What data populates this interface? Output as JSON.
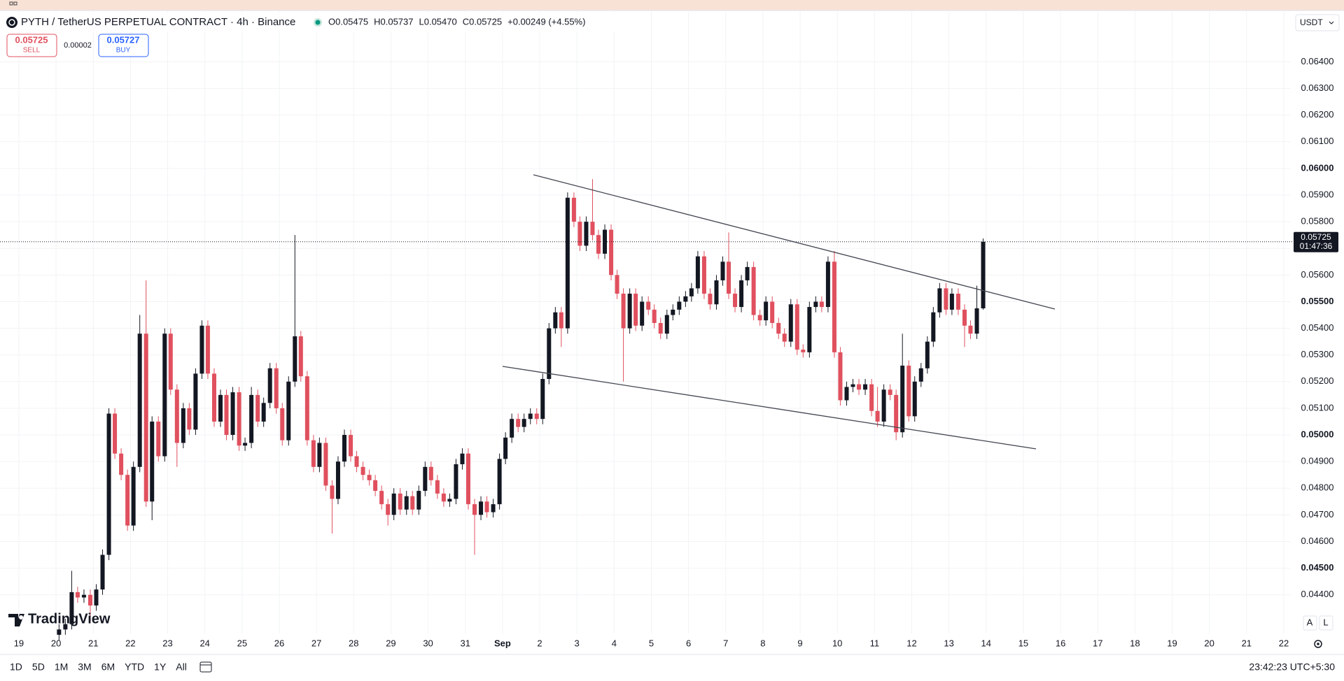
{
  "header": {
    "title": "PYTH / TetherUS PERPETUAL CONTRACT · 4h · Binance",
    "ohlc_legend": [
      "O0.05475",
      "H0.05737",
      "L0.05470",
      "C0.05725",
      "+0.00249 (+4.55%)"
    ],
    "sell_price": "0.05725",
    "sell_label": "SELL",
    "spread": "0.00002",
    "buy_price": "0.05727",
    "buy_label": "BUY",
    "currency": "USDT"
  },
  "chart_data": {
    "type": "candlestick",
    "up_color": "#131722",
    "down_color": "#e0505e",
    "grid": true,
    "xlim": [
      -0.507,
      34.17
    ],
    "ylim": [
      0.04255,
      0.0659
    ],
    "xticks": [
      {
        "value": 0,
        "label": "19"
      },
      {
        "value": 1,
        "label": "20"
      },
      {
        "value": 2,
        "label": "21"
      },
      {
        "value": 3,
        "label": "22"
      },
      {
        "value": 4,
        "label": "23"
      },
      {
        "value": 5,
        "label": "24"
      },
      {
        "value": 6,
        "label": "25"
      },
      {
        "value": 7,
        "label": "26"
      },
      {
        "value": 8,
        "label": "27"
      },
      {
        "value": 9,
        "label": "28"
      },
      {
        "value": 10,
        "label": "29"
      },
      {
        "value": 11,
        "label": "30"
      },
      {
        "value": 12,
        "label": "31"
      },
      {
        "value": 13,
        "label": "Sep"
      },
      {
        "value": 14,
        "label": "2"
      },
      {
        "value": 15,
        "label": "3"
      },
      {
        "value": 16,
        "label": "4"
      },
      {
        "value": 17,
        "label": "5"
      },
      {
        "value": 18,
        "label": "6"
      },
      {
        "value": 19,
        "label": "7"
      },
      {
        "value": 20,
        "label": "8"
      },
      {
        "value": 21,
        "label": "9"
      },
      {
        "value": 22,
        "label": "10"
      },
      {
        "value": 23,
        "label": "11"
      },
      {
        "value": 24,
        "label": "12"
      },
      {
        "value": 25,
        "label": "13"
      },
      {
        "value": 26,
        "label": "14"
      },
      {
        "value": 27,
        "label": "15"
      },
      {
        "value": 28,
        "label": "16"
      },
      {
        "value": 29,
        "label": "17"
      },
      {
        "value": 30,
        "label": "18"
      },
      {
        "value": 31,
        "label": "19"
      },
      {
        "value": 32,
        "label": "20"
      },
      {
        "value": 33,
        "label": "21"
      },
      {
        "value": 34,
        "label": "22"
      }
    ],
    "yticks": [
      {
        "value": 0.044,
        "label": "0.04400"
      },
      {
        "value": 0.045,
        "label": "0.04500"
      },
      {
        "value": 0.046,
        "label": "0.04600"
      },
      {
        "value": 0.047,
        "label": "0.04700"
      },
      {
        "value": 0.048,
        "label": "0.04800"
      },
      {
        "value": 0.049,
        "label": "0.04900"
      },
      {
        "value": 0.05,
        "label": "0.05000"
      },
      {
        "value": 0.051,
        "label": "0.05100"
      },
      {
        "value": 0.052,
        "label": "0.05200"
      },
      {
        "value": 0.053,
        "label": "0.05300"
      },
      {
        "value": 0.054,
        "label": "0.05400"
      },
      {
        "value": 0.055,
        "label": "0.05500"
      },
      {
        "value": 0.056,
        "label": "0.05600"
      },
      {
        "value": 0.057,
        "label": "0.05700"
      },
      {
        "value": 0.058,
        "label": "0.05800"
      },
      {
        "value": 0.059,
        "label": "0.05900"
      },
      {
        "value": 0.06,
        "label": "0.06000"
      },
      {
        "value": 0.061,
        "label": "0.06100"
      },
      {
        "value": 0.062,
        "label": "0.06200"
      },
      {
        "value": 0.063,
        "label": "0.06300"
      },
      {
        "value": 0.064,
        "label": "0.06400"
      }
    ],
    "x": [
      1.08,
      1.25,
      1.42,
      1.58,
      1.75,
      1.92,
      2.08,
      2.25,
      2.42,
      2.58,
      2.75,
      2.92,
      3.08,
      3.25,
      3.42,
      3.58,
      3.75,
      3.92,
      4.08,
      4.25,
      4.42,
      4.58,
      4.75,
      4.92,
      5.08,
      5.25,
      5.42,
      5.58,
      5.75,
      5.92,
      6.08,
      6.25,
      6.42,
      6.58,
      6.75,
      6.92,
      7.08,
      7.25,
      7.42,
      7.58,
      7.75,
      7.92,
      8.08,
      8.25,
      8.42,
      8.58,
      8.75,
      8.92,
      9.08,
      9.25,
      9.42,
      9.58,
      9.75,
      9.92,
      10.08,
      10.25,
      10.42,
      10.58,
      10.75,
      10.92,
      11.08,
      11.25,
      11.42,
      11.58,
      11.75,
      11.92,
      12.08,
      12.25,
      12.42,
      12.58,
      12.75,
      12.92,
      13.08,
      13.25,
      13.42,
      13.58,
      13.75,
      13.92,
      14.08,
      14.25,
      14.42,
      14.58,
      14.75,
      14.92,
      15.08,
      15.25,
      15.42,
      15.58,
      15.75,
      15.92,
      16.08,
      16.25,
      16.42,
      16.58,
      16.75,
      16.92,
      17.08,
      17.25,
      17.42,
      17.58,
      17.75,
      17.92,
      18.08,
      18.25,
      18.42,
      18.58,
      18.75,
      18.92,
      19.08,
      19.25,
      19.42,
      19.58,
      19.75,
      19.92,
      20.08,
      20.25,
      20.42,
      20.58,
      20.75,
      20.92,
      21.08,
      21.25,
      21.42,
      21.58,
      21.75,
      21.92,
      22.08,
      22.25,
      22.42,
      22.58,
      22.75,
      22.92,
      23.08,
      23.25,
      23.42,
      23.58,
      23.75,
      23.92,
      24.08,
      24.25,
      24.42,
      24.58,
      24.75,
      24.92,
      25.08,
      25.25,
      25.42,
      25.58,
      25.75,
      25.92
    ],
    "open": [
      0.0425,
      0.0427,
      0.0429,
      0.0441,
      0.0439,
      0.044,
      0.0436,
      0.0442,
      0.0455,
      0.0508,
      0.0493,
      0.0485,
      0.0466,
      0.0488,
      0.0538,
      0.0475,
      0.0505,
      0.0492,
      0.0538,
      0.0517,
      0.0497,
      0.051,
      0.0502,
      0.0523,
      0.0541,
      0.0523,
      0.0505,
      0.0515,
      0.05,
      0.0516,
      0.0496,
      0.0497,
      0.0515,
      0.0505,
      0.0512,
      0.0525,
      0.051,
      0.0498,
      0.052,
      0.0537,
      0.0522,
      0.0498,
      0.0488,
      0.0497,
      0.0481,
      0.0476,
      0.049,
      0.05,
      0.0492,
      0.0488,
      0.0485,
      0.0483,
      0.0479,
      0.0474,
      0.047,
      0.0478,
      0.0472,
      0.0477,
      0.0472,
      0.0479,
      0.0488,
      0.0483,
      0.0478,
      0.0475,
      0.0476,
      0.0489,
      0.0493,
      0.0474,
      0.047,
      0.0475,
      0.0471,
      0.0474,
      0.0491,
      0.0499,
      0.0506,
      0.0503,
      0.0506,
      0.0508,
      0.0506,
      0.0521,
      0.054,
      0.0546,
      0.054,
      0.0589,
      0.058,
      0.0571,
      0.058,
      0.0575,
      0.0568,
      0.0577,
      0.056,
      0.0553,
      0.054,
      0.0553,
      0.0541,
      0.055,
      0.0547,
      0.0542,
      0.0538,
      0.0545,
      0.0547,
      0.055,
      0.0552,
      0.0555,
      0.0567,
      0.0553,
      0.0549,
      0.0558,
      0.0565,
      0.0553,
      0.0548,
      0.0558,
      0.0563,
      0.0545,
      0.0543,
      0.055,
      0.0542,
      0.0538,
      0.0535,
      0.0549,
      0.0532,
      0.0531,
      0.0548,
      0.055,
      0.0548,
      0.0565,
      0.0531,
      0.0513,
      0.0518,
      0.0519,
      0.0517,
      0.0519,
      0.0509,
      0.0505,
      0.0517,
      0.0515,
      0.0501,
      0.0526,
      0.0507,
      0.052,
      0.0525,
      0.0535,
      0.0546,
      0.0555,
      0.0547,
      0.0553,
      0.0547,
      0.0541,
      0.0538,
      0.05475
    ],
    "high": [
      0.0429,
      0.0431,
      0.0449,
      0.0443,
      0.0442,
      0.0442,
      0.0444,
      0.0457,
      0.051,
      0.051,
      0.0495,
      0.0487,
      0.049,
      0.0545,
      0.0558,
      0.0507,
      0.0507,
      0.054,
      0.054,
      0.0519,
      0.0512,
      0.0512,
      0.0525,
      0.0543,
      0.0543,
      0.0525,
      0.0517,
      0.0517,
      0.0518,
      0.0518,
      0.0499,
      0.0518,
      0.0517,
      0.0514,
      0.0527,
      0.0527,
      0.0512,
      0.0522,
      0.0575,
      0.0539,
      0.0524,
      0.05,
      0.0499,
      0.0499,
      0.0483,
      0.0492,
      0.0502,
      0.0502,
      0.0494,
      0.049,
      0.0487,
      0.0485,
      0.0481,
      0.0476,
      0.048,
      0.048,
      0.0479,
      0.0479,
      0.0481,
      0.049,
      0.049,
      0.0485,
      0.048,
      0.0478,
      0.0491,
      0.0495,
      0.0495,
      0.0476,
      0.0477,
      0.0477,
      0.0476,
      0.0493,
      0.0501,
      0.0508,
      0.0508,
      0.0508,
      0.051,
      0.051,
      0.0523,
      0.0542,
      0.0548,
      0.0548,
      0.0591,
      0.0591,
      0.0582,
      0.0582,
      0.0596,
      0.0577,
      0.0579,
      0.0579,
      0.0562,
      0.0555,
      0.0555,
      0.0555,
      0.0552,
      0.0552,
      0.0549,
      0.0544,
      0.0547,
      0.0549,
      0.0552,
      0.0554,
      0.0557,
      0.0569,
      0.0569,
      0.0555,
      0.056,
      0.0567,
      0.0576,
      0.0555,
      0.056,
      0.0565,
      0.0565,
      0.0547,
      0.0552,
      0.0552,
      0.0544,
      0.054,
      0.0551,
      0.0551,
      0.0534,
      0.055,
      0.0552,
      0.0552,
      0.0567,
      0.0569,
      0.0533,
      0.052,
      0.0521,
      0.0521,
      0.0521,
      0.0521,
      0.0518,
      0.0519,
      0.0519,
      0.0517,
      0.0538,
      0.0528,
      0.0522,
      0.0527,
      0.0537,
      0.0548,
      0.0557,
      0.0557,
      0.0555,
      0.0555,
      0.0549,
      0.0543,
      0.0556,
      0.05737
    ],
    "low": [
      0.0423,
      0.0425,
      0.0427,
      0.0437,
      0.0437,
      0.043,
      0.0434,
      0.044,
      0.0453,
      0.0491,
      0.0483,
      0.0464,
      0.0464,
      0.0486,
      0.0473,
      0.0468,
      0.049,
      0.049,
      0.0515,
      0.0488,
      0.0495,
      0.05,
      0.05,
      0.0521,
      0.0521,
      0.0503,
      0.0503,
      0.0498,
      0.0498,
      0.0494,
      0.0494,
      0.0495,
      0.0503,
      0.0503,
      0.051,
      0.0508,
      0.0496,
      0.0496,
      0.0518,
      0.052,
      0.0496,
      0.0486,
      0.0486,
      0.0479,
      0.0463,
      0.0474,
      0.0488,
      0.049,
      0.0486,
      0.0483,
      0.0481,
      0.0477,
      0.0472,
      0.0466,
      0.0468,
      0.047,
      0.047,
      0.047,
      0.047,
      0.0477,
      0.0481,
      0.0476,
      0.0473,
      0.0473,
      0.0474,
      0.0487,
      0.0472,
      0.0455,
      0.0468,
      0.0469,
      0.0469,
      0.0472,
      0.0489,
      0.0497,
      0.0501,
      0.0501,
      0.0504,
      0.0504,
      0.0504,
      0.0519,
      0.0538,
      0.0533,
      0.0538,
      0.0578,
      0.0569,
      0.0569,
      0.0573,
      0.0566,
      0.0566,
      0.0558,
      0.0551,
      0.052,
      0.0538,
      0.0539,
      0.0539,
      0.0545,
      0.054,
      0.0536,
      0.0536,
      0.0543,
      0.0545,
      0.0548,
      0.055,
      0.0553,
      0.0551,
      0.0547,
      0.0547,
      0.0556,
      0.0551,
      0.0546,
      0.0546,
      0.0556,
      0.0543,
      0.0541,
      0.0541,
      0.054,
      0.0536,
      0.0533,
      0.0533,
      0.053,
      0.0529,
      0.0529,
      0.0546,
      0.0546,
      0.0546,
      0.0529,
      0.0511,
      0.0511,
      0.0516,
      0.0515,
      0.0515,
      0.0507,
      0.0503,
      0.0503,
      0.0513,
      0.0498,
      0.0499,
      0.0505,
      0.0505,
      0.0518,
      0.0523,
      0.0533,
      0.0544,
      0.0545,
      0.0545,
      0.0545,
      0.0533,
      0.0536,
      0.0536,
      0.0547
    ],
    "close": [
      0.0427,
      0.0429,
      0.0441,
      0.0439,
      0.044,
      0.0436,
      0.0442,
      0.0455,
      0.0508,
      0.0493,
      0.0485,
      0.0466,
      0.0488,
      0.0538,
      0.0475,
      0.0505,
      0.0492,
      0.0538,
      0.0517,
      0.0497,
      0.051,
      0.0502,
      0.0523,
      0.0541,
      0.0523,
      0.0505,
      0.0515,
      0.05,
      0.0516,
      0.0496,
      0.0497,
      0.0515,
      0.0505,
      0.0512,
      0.0525,
      0.051,
      0.0498,
      0.052,
      0.0537,
      0.0522,
      0.0498,
      0.0488,
      0.0497,
      0.0481,
      0.0476,
      0.049,
      0.05,
      0.0492,
      0.0488,
      0.0485,
      0.0483,
      0.0479,
      0.0474,
      0.047,
      0.0478,
      0.0472,
      0.0477,
      0.0472,
      0.0479,
      0.0488,
      0.0483,
      0.0478,
      0.0475,
      0.0476,
      0.0489,
      0.0493,
      0.0474,
      0.047,
      0.0475,
      0.0471,
      0.0474,
      0.0491,
      0.0499,
      0.0506,
      0.0503,
      0.0506,
      0.0508,
      0.0506,
      0.0521,
      0.054,
      0.0546,
      0.054,
      0.0589,
      0.058,
      0.0571,
      0.058,
      0.0575,
      0.0568,
      0.0577,
      0.056,
      0.0553,
      0.054,
      0.0553,
      0.0541,
      0.055,
      0.0547,
      0.0542,
      0.0538,
      0.0545,
      0.0547,
      0.055,
      0.0552,
      0.0555,
      0.0567,
      0.0553,
      0.0549,
      0.0558,
      0.0565,
      0.0553,
      0.0548,
      0.0558,
      0.0563,
      0.0545,
      0.0543,
      0.055,
      0.0542,
      0.0538,
      0.0535,
      0.0549,
      0.0532,
      0.0531,
      0.0548,
      0.055,
      0.0548,
      0.0565,
      0.0531,
      0.0513,
      0.0518,
      0.0519,
      0.0517,
      0.0519,
      0.0509,
      0.0505,
      0.0517,
      0.0515,
      0.0501,
      0.0526,
      0.0507,
      0.052,
      0.0525,
      0.0535,
      0.0546,
      0.0555,
      0.0547,
      0.0553,
      0.0547,
      0.0541,
      0.0538,
      0.05475,
      0.05725
    ],
    "last_price_label": "0.05725",
    "countdown": "01:47:36"
  },
  "footer": {
    "timeframes": [
      "1D",
      "5D",
      "1M",
      "3M",
      "6M",
      "YTD",
      "1Y",
      "All"
    ],
    "clock": "23:42:23 UTC+5:30",
    "scale_buttons": [
      "A",
      "L"
    ],
    "brand": "TradingView"
  }
}
